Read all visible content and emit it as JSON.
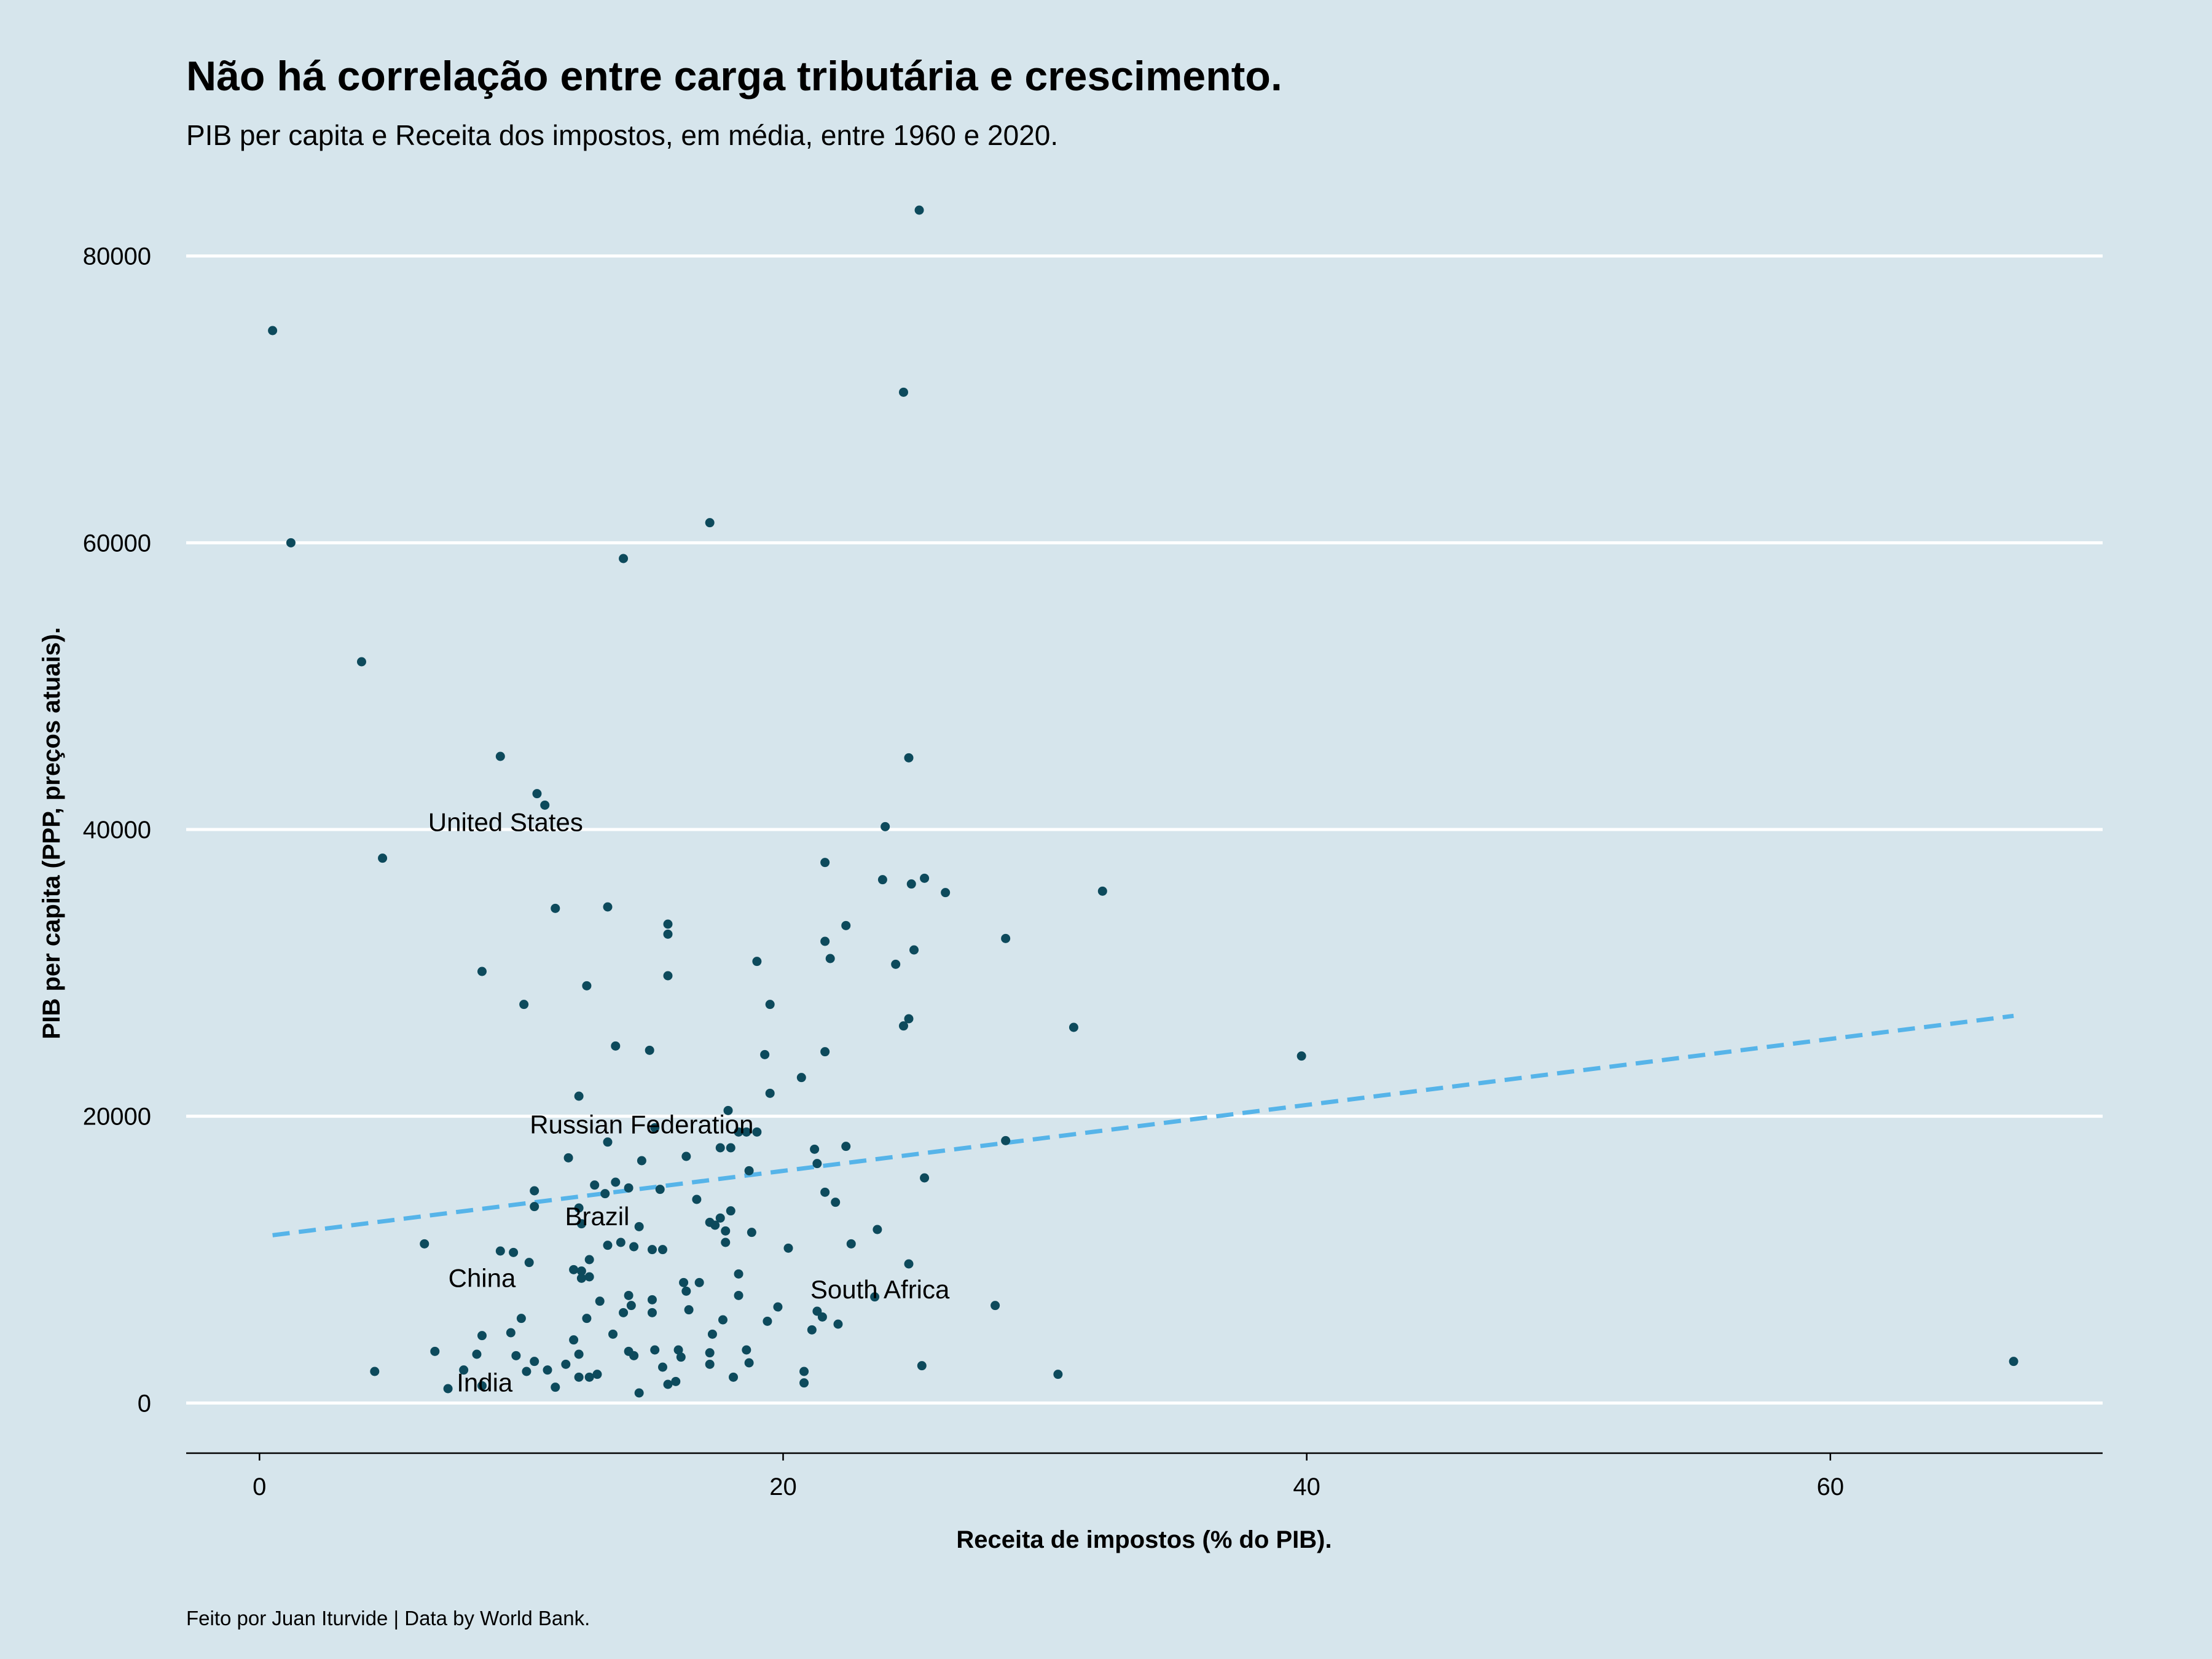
{
  "chart_data": {
    "type": "scatter",
    "title": "Não há correlação entre carga tributária e crescimento.",
    "subtitle": "PIB per capita e Receita dos impostos, em média, entre 1960 e 2020.",
    "xlabel": "Receita de impostos (% do PIB).",
    "ylabel": "PIB per capita (PPP, preços atuais).",
    "caption": "Feito por Juan Iturvide | Data by World Bank.",
    "xlim": [
      -2.8,
      70.4
    ],
    "ylim": [
      -3500,
      85000
    ],
    "x_ticks": [
      0,
      20,
      40,
      60
    ],
    "y_ticks": [
      0,
      20000,
      40000,
      60000,
      80000
    ],
    "grid": "horizontal major lines",
    "colors": {
      "background": "#d6e5ec",
      "points": "#0d4a5c",
      "trend": "#56b4e9",
      "grid": "#ffffff",
      "axis": "#000000"
    },
    "trend_line": {
      "style": "dashed",
      "x": [
        0.5,
        67.0
      ],
      "y": [
        11700,
        27000
      ]
    },
    "annotations": [
      {
        "label": "United States",
        "x": 9.4,
        "y": 40500
      },
      {
        "label": "Russian Federation",
        "x": 14.6,
        "y": 19400
      },
      {
        "label": "Brazil",
        "x": 12.9,
        "y": 13000
      },
      {
        "label": "China",
        "x": 8.5,
        "y": 8700
      },
      {
        "label": "South Africa",
        "x": 23.7,
        "y": 7900
      },
      {
        "label": "India",
        "x": 8.6,
        "y": 1400
      }
    ],
    "points": [
      [
        25.2,
        83200
      ],
      [
        0.5,
        74800
      ],
      [
        24.6,
        70500
      ],
      [
        17.2,
        61400
      ],
      [
        1.2,
        60000
      ],
      [
        13.9,
        58900
      ],
      [
        3.9,
        51700
      ],
      [
        9.2,
        45100
      ],
      [
        24.8,
        45000
      ],
      [
        10.6,
        42500
      ],
      [
        10.9,
        41700
      ],
      [
        23.9,
        40200
      ],
      [
        4.7,
        38000
      ],
      [
        21.6,
        37700
      ],
      [
        25.4,
        36600
      ],
      [
        23.8,
        36500
      ],
      [
        24.9,
        36200
      ],
      [
        26.2,
        35600
      ],
      [
        32.2,
        35700
      ],
      [
        11.3,
        34500
      ],
      [
        13.3,
        34600
      ],
      [
        15.6,
        33400
      ],
      [
        22.4,
        33300
      ],
      [
        15.6,
        32700
      ],
      [
        28.5,
        32400
      ],
      [
        21.6,
        32200
      ],
      [
        25.0,
        31600
      ],
      [
        21.8,
        31000
      ],
      [
        19.0,
        30800
      ],
      [
        24.3,
        30600
      ],
      [
        8.5,
        30100
      ],
      [
        15.6,
        29800
      ],
      [
        12.5,
        29100
      ],
      [
        10.1,
        27800
      ],
      [
        19.5,
        27800
      ],
      [
        24.8,
        26800
      ],
      [
        24.6,
        26300
      ],
      [
        31.1,
        26200
      ],
      [
        13.6,
        24900
      ],
      [
        14.9,
        24600
      ],
      [
        21.6,
        24500
      ],
      [
        19.3,
        24300
      ],
      [
        39.8,
        24200
      ],
      [
        20.7,
        22700
      ],
      [
        19.5,
        21600
      ],
      [
        12.2,
        21400
      ],
      [
        17.9,
        20400
      ],
      [
        18.3,
        18900
      ],
      [
        18.6,
        18900
      ],
      [
        19.0,
        18900
      ],
      [
        15.1,
        19200
      ],
      [
        28.5,
        18300
      ],
      [
        13.3,
        18200
      ],
      [
        22.4,
        17900
      ],
      [
        17.6,
        17800
      ],
      [
        18.0,
        17800
      ],
      [
        21.2,
        17700
      ],
      [
        16.3,
        17200
      ],
      [
        11.8,
        17100
      ],
      [
        14.6,
        16900
      ],
      [
        21.3,
        16700
      ],
      [
        18.7,
        16200
      ],
      [
        25.4,
        15700
      ],
      [
        13.6,
        15400
      ],
      [
        12.8,
        15200
      ],
      [
        14.1,
        15000
      ],
      [
        15.3,
        14900
      ],
      [
        10.5,
        14800
      ],
      [
        13.2,
        14600
      ],
      [
        21.6,
        14700
      ],
      [
        16.7,
        14200
      ],
      [
        22.0,
        14000
      ],
      [
        10.5,
        13700
      ],
      [
        12.2,
        13600
      ],
      [
        18.0,
        13400
      ],
      [
        17.6,
        12900
      ],
      [
        17.2,
        12600
      ],
      [
        12.3,
        12500
      ],
      [
        14.5,
        12300
      ],
      [
        17.4,
        12400
      ],
      [
        23.6,
        12100
      ],
      [
        17.8,
        12000
      ],
      [
        18.8,
        11900
      ],
      [
        6.3,
        11100
      ],
      [
        13.3,
        11000
      ],
      [
        13.8,
        11200
      ],
      [
        14.3,
        10900
      ],
      [
        17.8,
        11200
      ],
      [
        22.6,
        11100
      ],
      [
        15.0,
        10700
      ],
      [
        15.4,
        10700
      ],
      [
        9.2,
        10600
      ],
      [
        9.7,
        10500
      ],
      [
        20.2,
        10800
      ],
      [
        12.6,
        10000
      ],
      [
        10.3,
        9800
      ],
      [
        24.8,
        9700
      ],
      [
        12.0,
        9300
      ],
      [
        12.3,
        9200
      ],
      [
        18.3,
        9000
      ],
      [
        12.6,
        8800
      ],
      [
        12.3,
        8700
      ],
      [
        16.2,
        8400
      ],
      [
        16.8,
        8400
      ],
      [
        16.3,
        7800
      ],
      [
        14.1,
        7500
      ],
      [
        15.0,
        7200
      ],
      [
        18.3,
        7500
      ],
      [
        23.5,
        7400
      ],
      [
        13.0,
        7100
      ],
      [
        21.3,
        6400
      ],
      [
        28.1,
        6800
      ],
      [
        14.2,
        6800
      ],
      [
        19.8,
        6700
      ],
      [
        16.4,
        6500
      ],
      [
        13.9,
        6300
      ],
      [
        15.0,
        6300
      ],
      [
        21.5,
        6000
      ],
      [
        12.5,
        5900
      ],
      [
        10.0,
        5900
      ],
      [
        17.7,
        5800
      ],
      [
        19.4,
        5700
      ],
      [
        22.1,
        5500
      ],
      [
        21.1,
        5100
      ],
      [
        9.6,
        4900
      ],
      [
        13.5,
        4800
      ],
      [
        8.5,
        4700
      ],
      [
        17.3,
        4800
      ],
      [
        12.0,
        4400
      ],
      [
        6.7,
        3600
      ],
      [
        8.3,
        3400
      ],
      [
        14.1,
        3600
      ],
      [
        15.1,
        3700
      ],
      [
        16.0,
        3700
      ],
      [
        18.6,
        3700
      ],
      [
        9.8,
        3300
      ],
      [
        12.2,
        3400
      ],
      [
        14.3,
        3300
      ],
      [
        16.1,
        3200
      ],
      [
        17.2,
        3500
      ],
      [
        18.7,
        2800
      ],
      [
        10.5,
        2900
      ],
      [
        11.7,
        2700
      ],
      [
        15.4,
        2500
      ],
      [
        17.2,
        2700
      ],
      [
        25.3,
        2600
      ],
      [
        4.4,
        2200
      ],
      [
        7.8,
        2300
      ],
      [
        10.2,
        2200
      ],
      [
        11.0,
        2300
      ],
      [
        12.9,
        2000
      ],
      [
        20.8,
        2200
      ],
      [
        30.5,
        2000
      ],
      [
        12.2,
        1800
      ],
      [
        12.6,
        1800
      ],
      [
        15.9,
        1500
      ],
      [
        18.1,
        1800
      ],
      [
        11.3,
        1100
      ],
      [
        7.2,
        1000
      ],
      [
        8.5,
        1200
      ],
      [
        15.6,
        1300
      ],
      [
        20.8,
        1400
      ],
      [
        14.5,
        700
      ],
      [
        67.0,
        2900
      ]
    ]
  }
}
